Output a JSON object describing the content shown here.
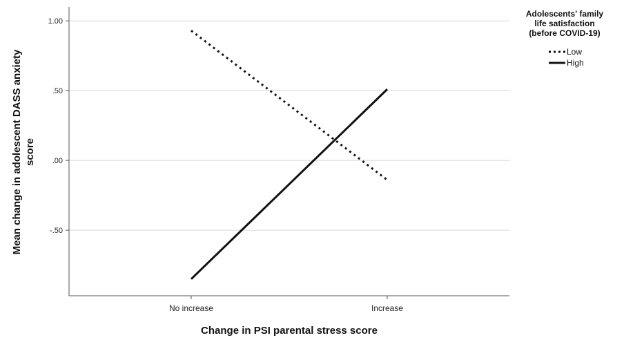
{
  "chart_data": {
    "type": "line",
    "categories": [
      "No increase",
      "Increase"
    ],
    "xlabel": "Change in PSI parental stress score",
    "ylabel_lines": [
      "Mean change in adolescent DASS anxiety",
      "score"
    ],
    "ylim": [
      -0.97,
      1.1
    ],
    "yticks": [
      1.0,
      0.5,
      0.0,
      -0.5
    ],
    "ytick_labels": [
      "1.00",
      ".50",
      ".00",
      "-.50"
    ],
    "grid": "horizontal",
    "legend": {
      "title_lines": [
        "Adolescents' family",
        "life satisfaction",
        "(before COVID-19)"
      ],
      "placement": "top-right"
    },
    "series": [
      {
        "name": "Low",
        "style": "dotted",
        "color": "#111111",
        "values": [
          0.93,
          -0.14
        ]
      },
      {
        "name": "High",
        "style": "solid",
        "color": "#111111",
        "values": [
          -0.85,
          0.51
        ]
      }
    ]
  }
}
